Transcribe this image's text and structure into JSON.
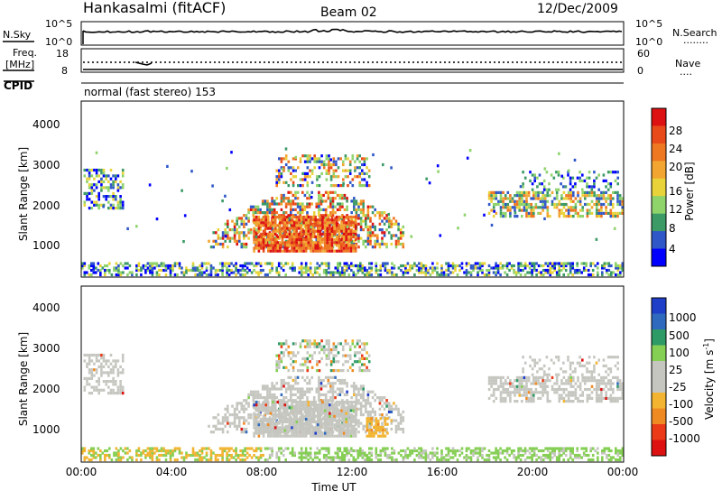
{
  "header": {
    "station": "Hankasalmi (fitACF)",
    "beam": "Beam 02",
    "date": "12/Dec/2009"
  },
  "nsky_panel": {
    "label": "N.Sky",
    "y_top": "10^5",
    "y_bottom": "10^0",
    "right_top": "10^5",
    "right_bottom": "10^0",
    "right_label": "N.Search",
    "right_legend": "........"
  },
  "freq_panel": {
    "label_line1": "Freq.",
    "label_line2": "[MHz]",
    "y_top": "18",
    "y_bottom": "8",
    "right_top": "60",
    "right_bottom": "0",
    "right_label": "Nave",
    "right_legend": "...."
  },
  "cpid": {
    "label": "CPID",
    "value": "normal (fast stereo) 153"
  },
  "colors": {
    "power": [
      "#0000ff",
      "#2f57c8",
      "#3b9a66",
      "#8fd36b",
      "#e8d43a",
      "#f2a531",
      "#ee7722",
      "#e84a1a",
      "#dd1111"
    ],
    "velocity": [
      "#1f3fc8",
      "#2f6abf",
      "#2e9a66",
      "#86cf55",
      "#c6c6c0",
      "#c6c6c0",
      "#f2b431",
      "#ef8a22",
      "#ea3a17",
      "#dd1111"
    ]
  },
  "chart_data": [
    {
      "type": "heatmap",
      "name": "power",
      "ylabel": "Slant Range [km]",
      "yticks": [
        "1000",
        "2000",
        "3000",
        "4000"
      ],
      "ylim": [
        200,
        4500
      ],
      "colorbar_label": "Power [dB]",
      "colorbar_ticks": [
        "4",
        "8",
        "12",
        "16",
        "20",
        "24",
        "28"
      ]
    },
    {
      "type": "heatmap",
      "name": "velocity",
      "ylabel": "Slant Range [km]",
      "yticks": [
        "1000",
        "2000",
        "3000",
        "4000"
      ],
      "ylim": [
        200,
        4500
      ],
      "xlabel": "Time UT",
      "xticks": [
        "00:00",
        "04:00",
        "08:00",
        "12:00",
        "16:00",
        "20:00",
        "00:00"
      ],
      "colorbar_label_main": "Velocity  [m s",
      "colorbar_label_sup": "-1",
      "colorbar_label_close": "]",
      "colorbar_ticks": [
        "1000",
        "500",
        "100",
        "25",
        "-25",
        "-100",
        "-500",
        "-1000"
      ]
    }
  ]
}
